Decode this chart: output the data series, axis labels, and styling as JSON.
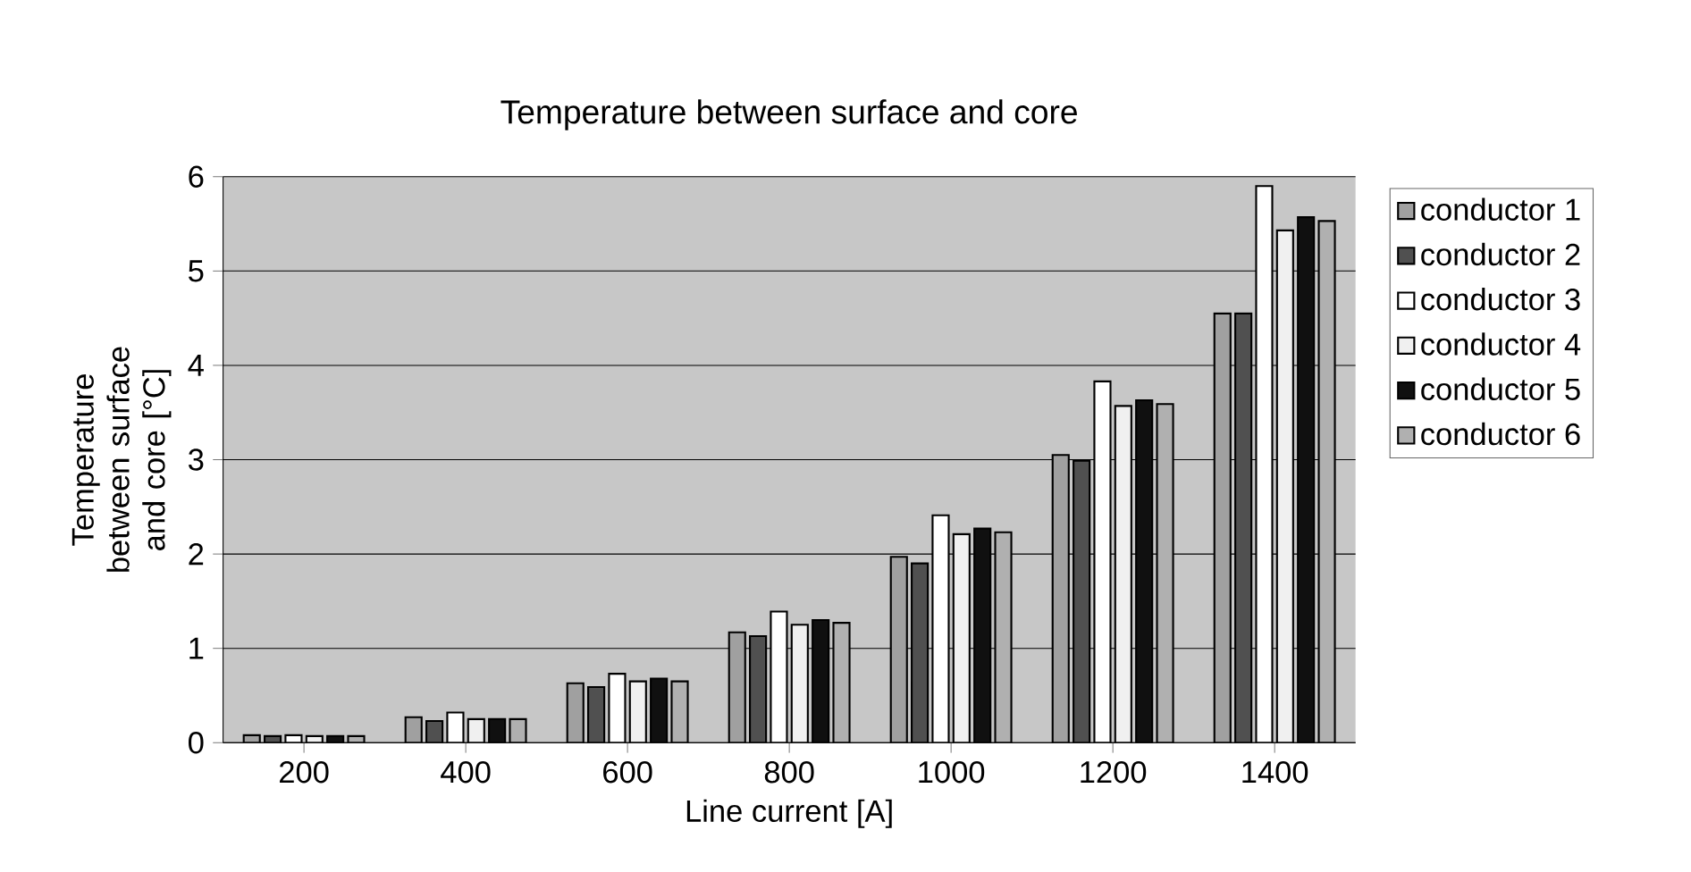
{
  "chart_data": {
    "type": "bar",
    "title": "Temperature between surface and core",
    "xlabel": "Line current [A]",
    "ylabel": "Temperature between surface and core [°C]",
    "categories": [
      "200",
      "400",
      "600",
      "800",
      "1000",
      "1200",
      "1400"
    ],
    "series": [
      {
        "name": "conductor 1",
        "color": "#a0a0a0",
        "values": [
          0.08,
          0.27,
          0.63,
          1.17,
          1.97,
          3.05,
          4.55
        ]
      },
      {
        "name": "conductor 2",
        "color": "#505050",
        "values": [
          0.07,
          0.23,
          0.59,
          1.13,
          1.9,
          2.99,
          4.55
        ]
      },
      {
        "name": "conductor 3",
        "color": "#ffffff",
        "values": [
          0.08,
          0.32,
          0.73,
          1.39,
          2.41,
          3.83,
          5.9
        ]
      },
      {
        "name": "conductor 4",
        "color": "#f0f0f0",
        "values": [
          0.07,
          0.25,
          0.65,
          1.25,
          2.21,
          3.57,
          5.43
        ]
      },
      {
        "name": "conductor 5",
        "color": "#101010",
        "values": [
          0.07,
          0.25,
          0.68,
          1.3,
          2.27,
          3.63,
          5.57
        ]
      },
      {
        "name": "conductor 6",
        "color": "#b0b0b0",
        "values": [
          0.07,
          0.25,
          0.65,
          1.27,
          2.23,
          3.59,
          5.53
        ]
      }
    ],
    "ylim": [
      0,
      6
    ],
    "yticks": [
      0,
      1,
      2,
      3,
      4,
      5,
      6
    ],
    "grid": "y",
    "legend": "right"
  }
}
